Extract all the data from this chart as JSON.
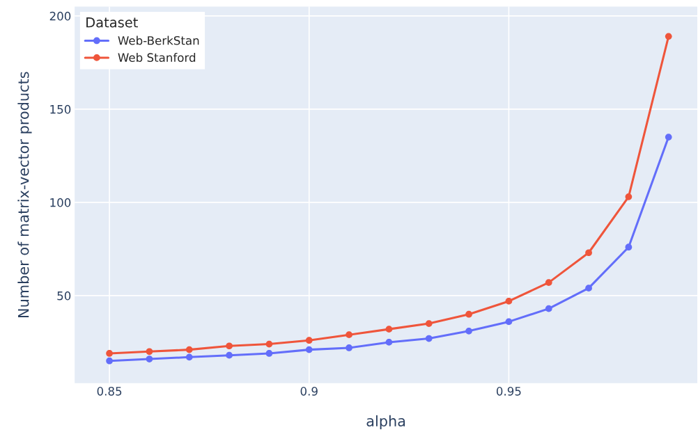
{
  "chart_data": {
    "type": "line",
    "xlabel": "alpha",
    "ylabel": "Number of matrix-vector products",
    "legend_title": "Dataset",
    "x": [
      0.85,
      0.86,
      0.87,
      0.88,
      0.89,
      0.9,
      0.91,
      0.92,
      0.93,
      0.94,
      0.95,
      0.96,
      0.97,
      0.98,
      0.99
    ],
    "series": [
      {
        "name": "Web-BerkStan",
        "color": "#636efa",
        "values": [
          15,
          16,
          17,
          18,
          19,
          21,
          22,
          25,
          27,
          31,
          36,
          43,
          54,
          76,
          135
        ]
      },
      {
        "name": "Web Stanford",
        "color": "#ef553b",
        "values": [
          19,
          20,
          21,
          23,
          24,
          26,
          29,
          32,
          35,
          40,
          47,
          57,
          73,
          103,
          189
        ]
      }
    ],
    "xlim": [
      0.8413,
      0.9972
    ],
    "ylim": [
      3,
      205
    ],
    "xticks": [
      0.85,
      0.9,
      0.95
    ],
    "yticks": [
      50,
      100,
      150,
      200
    ],
    "grid": true,
    "legend": "top left",
    "marker": "circle",
    "line_style": "solid"
  }
}
